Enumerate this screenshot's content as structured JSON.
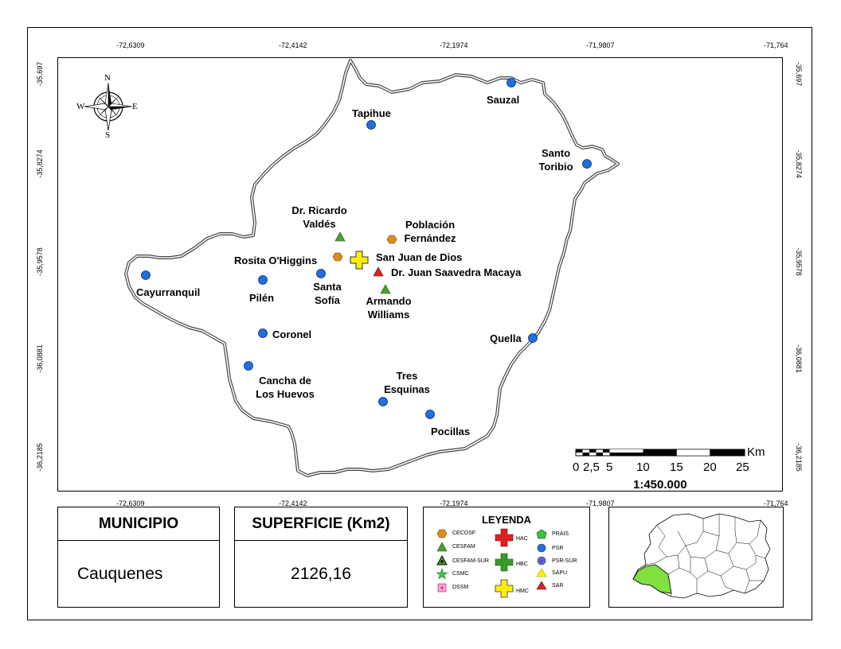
{
  "map": {
    "lon_ticks": [
      "-72,6309",
      "-72,4142",
      "-72,1974",
      "-71,9807",
      "-71,764"
    ],
    "lat_ticks": [
      "-35,697",
      "-35,8274",
      "-35,9578",
      "-36,0881",
      "-36,2185"
    ],
    "north_arrow": {
      "n": "N",
      "s": "S",
      "e": "E",
      "w": "W"
    },
    "places": {
      "sauzal": "Sauzal",
      "tapihue": "Tapihue",
      "santo_toribio": "Santo\nToribio",
      "ricardo_valdes": "Dr. Ricardo\nValdés",
      "poblacion_fernandez": "Población\nFernández",
      "rosita_ohiggins": "Rosita O'Higgins",
      "san_juan_de_dios": "San Juan de Dios",
      "saavedra": "Dr. Juan Saavedra Macaya",
      "santa_sofia": "Santa\nSofía",
      "armando_williams": "Armando\nWilliams",
      "cayurranquil": "Cayurranquil",
      "pilen": "Pilén",
      "coronel": "Coronel",
      "quella": "Quella",
      "cancha": "Cancha de\nLos Huevos",
      "tres_esquinas": "Tres\nEsquinas",
      "pocillas": "Pocillas"
    },
    "scale_bar": {
      "unit": "Km",
      "labels": [
        "0",
        "2,5",
        "5",
        "10",
        "15",
        "20",
        "25"
      ],
      "ratio": "1:450.000"
    }
  },
  "municipio": {
    "header": "MUNICIPIO",
    "value": "Cauquenes"
  },
  "superficie": {
    "header": "SUPERFICIE (Km2)",
    "value": "2126,16"
  },
  "legend": {
    "title": "LEYENDA",
    "items": {
      "cecosf": "CECOSF",
      "cesfam": "CESFAM",
      "cesfam_sur": "CESFAM-SUR",
      "csmc": "CSMC",
      "dssm": "DSSM",
      "hac": "HAC",
      "hbc": "HBC",
      "hmc": "HMC",
      "prais": "PRAIS",
      "psr": "PSR",
      "psr_sur": "PSR-SUR",
      "sapu": "SAPU",
      "sar": "SAR"
    }
  },
  "colors": {
    "psr_blue": "#1f6fe0",
    "cecosf_orange": "#e08a1e",
    "cesfam_green": "#4aa02c",
    "hac_red": "#e02020",
    "hbc_green": "#3a9a2a",
    "hmc_yellow": "#ffee00",
    "sar_red": "#e02020",
    "region_green": "#7fe040"
  }
}
